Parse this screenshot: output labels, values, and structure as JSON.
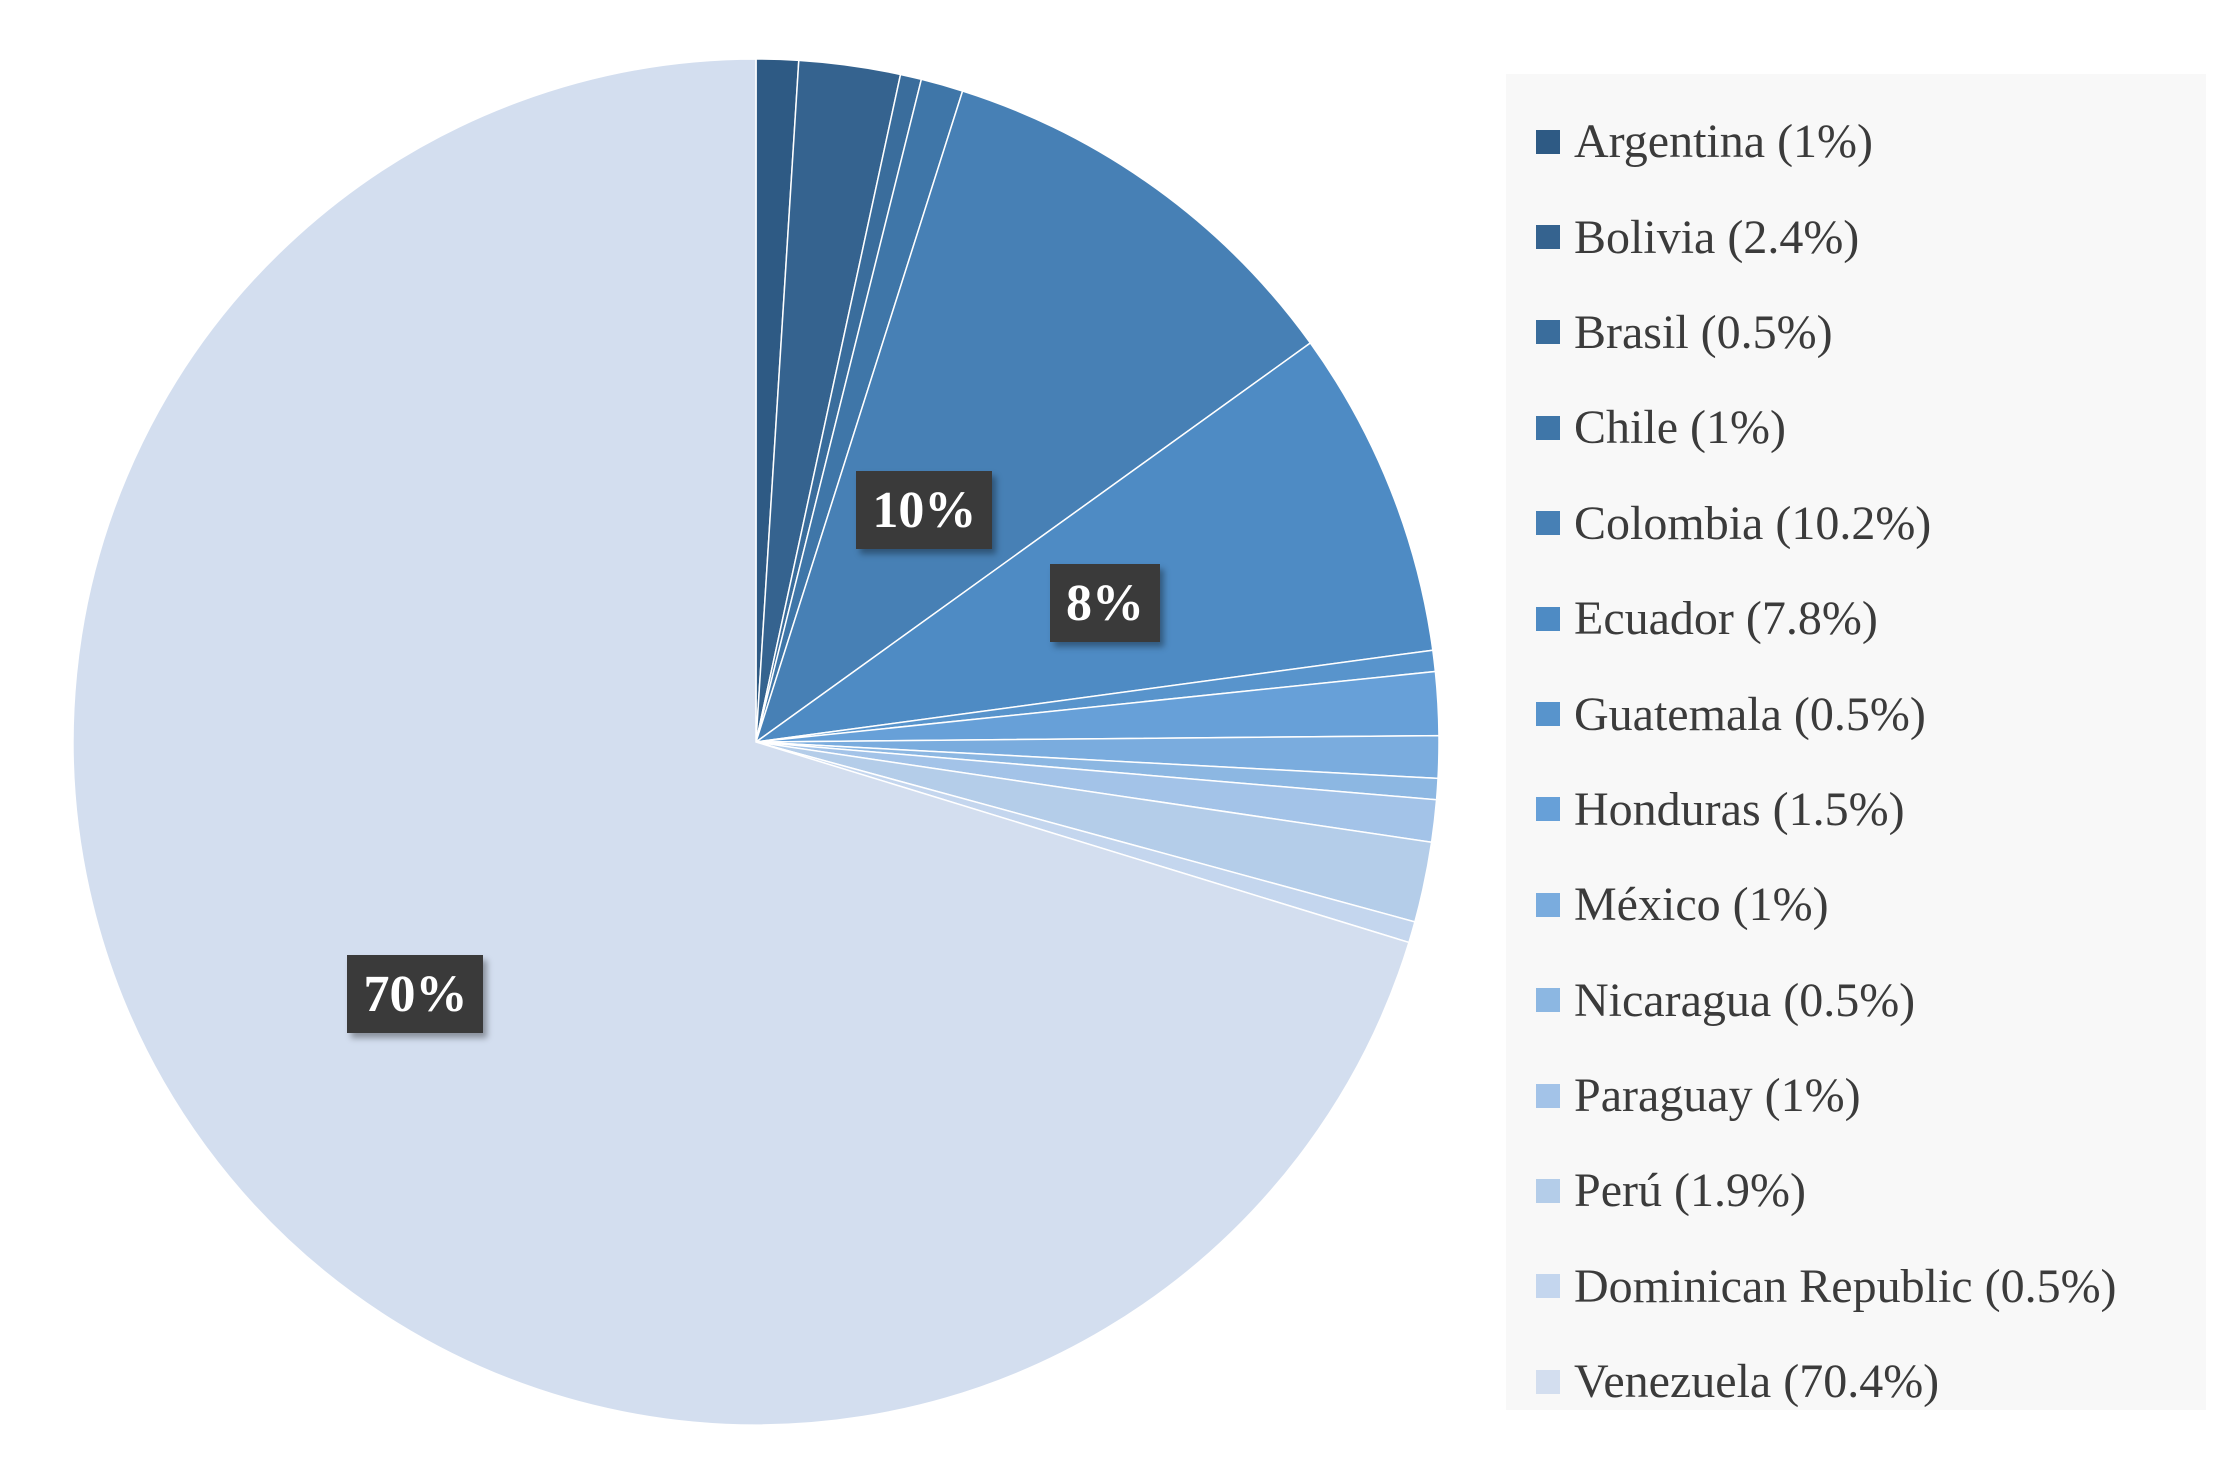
{
  "chart_data": {
    "type": "pie",
    "title": "",
    "slices": [
      {
        "label": "Argentina (1%)",
        "value": 1.0,
        "color": "#2e5a84"
      },
      {
        "label": "Bolivia (2.4%)",
        "value": 2.4,
        "color": "#35638f"
      },
      {
        "label": "Brasil (0.5%)",
        "value": 0.5,
        "color": "#3a6d9c"
      },
      {
        "label": "Chile (1%)",
        "value": 1.0,
        "color": "#3f76a8"
      },
      {
        "label": "Colombia (10.2%)",
        "value": 10.2,
        "color": "#4780b5"
      },
      {
        "label": "Ecuador (7.8%)",
        "value": 7.8,
        "color": "#4e8bc4"
      },
      {
        "label": "Guatemala (0.5%)",
        "value": 0.5,
        "color": "#5894cc"
      },
      {
        "label": "Honduras (1.5%)",
        "value": 1.5,
        "color": "#67a0d8"
      },
      {
        "label": "México (1%)",
        "value": 1.0,
        "color": "#7aacde"
      },
      {
        "label": "Nicaragua (0.5%)",
        "value": 0.5,
        "color": "#8cb7e2"
      },
      {
        "label": "Paraguay (1%)",
        "value": 1.0,
        "color": "#a3c3e8"
      },
      {
        "label": "Perú (1.9%)",
        "value": 1.9,
        "color": "#b4cde9"
      },
      {
        "label": "Dominican Republic (0.5%)",
        "value": 0.5,
        "color": "#c4d6ee"
      },
      {
        "label": "Venezuela (70.4%)",
        "value": 70.4,
        "color": "#d3deef"
      }
    ],
    "data_labels": [
      {
        "slice": "Colombia (10.2%)",
        "text": "10%"
      },
      {
        "slice": "Ecuador (7.8%)",
        "text": "8%"
      },
      {
        "slice": "Venezuela (70.4%)",
        "text": "70%"
      }
    ],
    "start_angle": "12 o'clock",
    "direction": "clockwise",
    "legend_position": "right"
  }
}
